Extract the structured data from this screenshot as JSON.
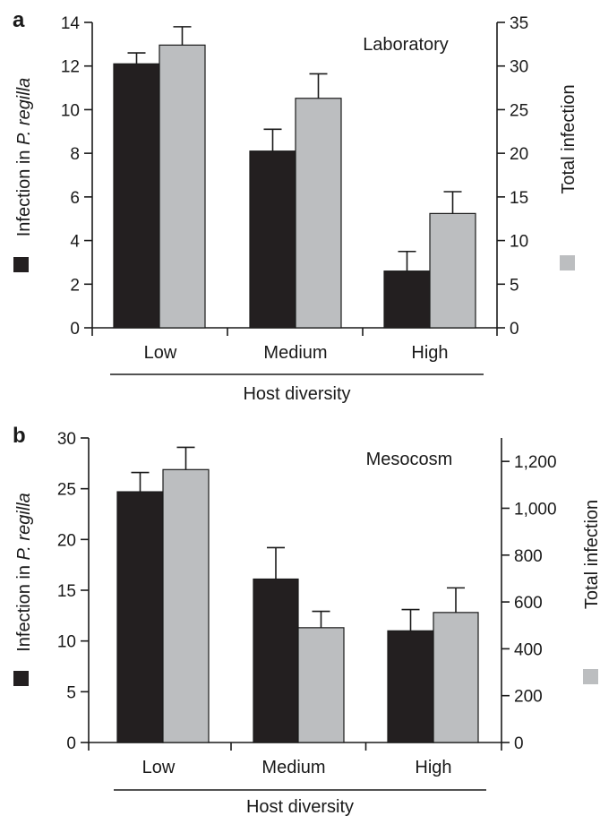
{
  "chart_data": [
    {
      "panel": "a",
      "type": "bar",
      "annotation": "Laboratory",
      "categories": [
        "Low",
        "Medium",
        "High"
      ],
      "xlabel": "Host diversity",
      "left_axis": {
        "label_parts": [
          "Infection in ",
          "P. regilla"
        ],
        "ylim": [
          0,
          14
        ],
        "ticks": [
          "0",
          "2",
          "4",
          "6",
          "8",
          "10",
          "12",
          "14"
        ]
      },
      "right_axis": {
        "label": "Total infection",
        "ylim": [
          0,
          35
        ],
        "ticks": [
          "0",
          "5",
          "10",
          "15",
          "20",
          "25",
          "30",
          "35"
        ]
      },
      "series": [
        {
          "name": "Infection in P. regilla",
          "axis": "left",
          "color": "#231f20",
          "values": [
            12.1,
            8.1,
            2.6
          ],
          "errors": [
            0.5,
            1.0,
            0.9
          ]
        },
        {
          "name": "Total infection",
          "axis": "right",
          "color": "#bcbec0",
          "values": [
            32.4,
            26.3,
            13.1
          ],
          "errors": [
            2.1,
            2.8,
            2.5
          ]
        }
      ],
      "grid": false
    },
    {
      "panel": "b",
      "type": "bar",
      "annotation": "Mesocosm",
      "categories": [
        "Low",
        "Medium",
        "High"
      ],
      "xlabel": "Host diversity",
      "left_axis": {
        "label_parts": [
          "Infection in ",
          "P. regilla"
        ],
        "ylim": [
          0,
          30
        ],
        "ticks": [
          "0",
          "5",
          "10",
          "15",
          "20",
          "25",
          "30"
        ]
      },
      "right_axis": {
        "label": "Total infection",
        "ylim": [
          0,
          1300
        ],
        "ticks": [
          "0",
          "200",
          "400",
          "600",
          "800",
          "1,000",
          "1,200"
        ]
      },
      "series": [
        {
          "name": "Infection in P. regilla",
          "axis": "left",
          "color": "#231f20",
          "values": [
            24.7,
            16.1,
            11.0
          ],
          "errors": [
            1.9,
            3.1,
            2.1
          ]
        },
        {
          "name": "Total infection",
          "axis": "right",
          "color": "#bcbec0",
          "values": [
            1165,
            490,
            555
          ],
          "errors": [
            95,
            70,
            105
          ]
        }
      ],
      "grid": false
    }
  ]
}
